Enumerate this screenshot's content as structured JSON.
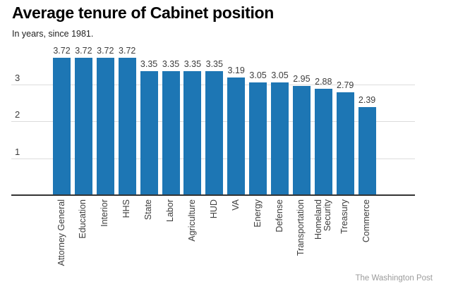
{
  "page": {
    "title": "Average tenure of Cabinet position",
    "subtitle": "In years, since 1981.",
    "attribution": "The Washington Post"
  },
  "colors": {
    "bar": "#1d76b4",
    "grid": "#dcdcdc",
    "axis": "#333333",
    "label_text": "#3d3d3d",
    "attribution_text": "#9b9b9b"
  },
  "chart_data": {
    "type": "bar",
    "title": "Average tenure of Cabinet position",
    "subtitle": "In years, since 1981.",
    "categories": [
      "Attorney General",
      "Education",
      "Interior",
      "HHS",
      "State",
      "Labor",
      "Agriculture",
      "HUD",
      "VA",
      "Energy",
      "Defense",
      "Transportation",
      "Homeland Security",
      "Treasury",
      "Commerce"
    ],
    "category_display": [
      "Attorney General",
      "Education",
      "Interior",
      "HHS",
      "State",
      "Labor",
      "Agriculture",
      "HUD",
      "VA",
      "Energy",
      "Defense",
      "Transportation",
      "Homeland\nSecurity",
      "Treasury",
      "Commerce"
    ],
    "values": [
      3.72,
      3.72,
      3.72,
      3.72,
      3.35,
      3.35,
      3.35,
      3.35,
      3.19,
      3.05,
      3.05,
      2.95,
      2.88,
      2.79,
      2.39
    ],
    "value_labels": [
      "3.72",
      "3.72",
      "3.72",
      "3.72",
      "3.35",
      "3.35",
      "3.35",
      "3.35",
      "3.19",
      "3.05",
      "3.05",
      "2.95",
      "2.88",
      "2.79",
      "2.39"
    ],
    "yticks": [
      1,
      2,
      3
    ],
    "ylim": [
      0,
      3.9
    ],
    "xlabel": "",
    "ylabel": "",
    "grid": true,
    "legend_position": "none",
    "x_label_rotation": -90,
    "attribution": "The Washington Post"
  }
}
